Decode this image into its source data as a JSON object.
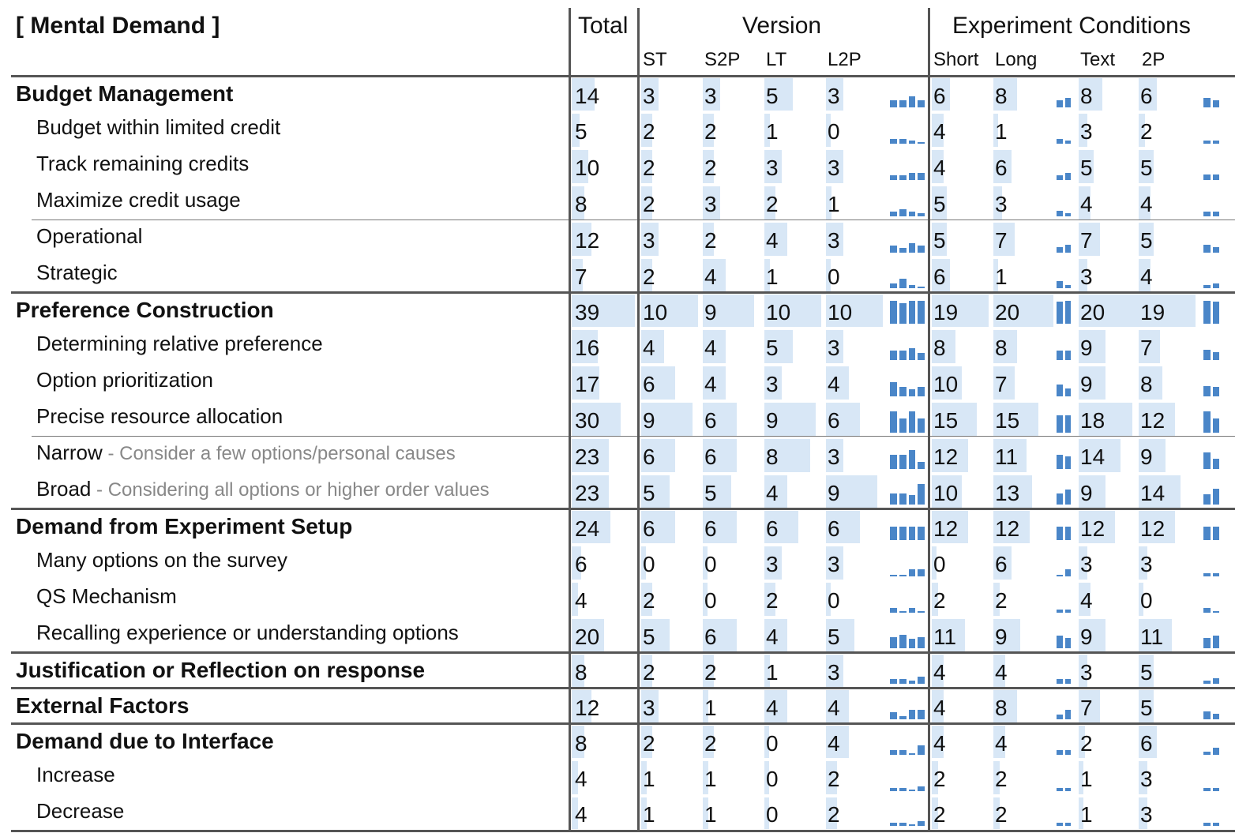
{
  "chart_data": {
    "type": "table",
    "title": "[ Mental Demand ]",
    "header": {
      "total_label": "Total",
      "version_label": "Version",
      "conditions_label": "Experiment Conditions",
      "version_cols": [
        "ST",
        "S2P",
        "LT",
        "L2P"
      ],
      "condition_cols": [
        "Short",
        "Long",
        "Text",
        "2P"
      ]
    },
    "rows": [
      {
        "label": "Budget Management",
        "level": "category",
        "total": 14,
        "version": [
          3,
          3,
          5,
          3
        ],
        "conditions": [
          6,
          8,
          8,
          6
        ]
      },
      {
        "label": "Budget within limited credit",
        "level": "sub",
        "total": 5,
        "version": [
          2,
          2,
          1,
          0
        ],
        "conditions": [
          4,
          1,
          3,
          2
        ]
      },
      {
        "label": "Track remaining credits",
        "level": "sub",
        "total": 10,
        "version": [
          2,
          2,
          3,
          3
        ],
        "conditions": [
          4,
          6,
          5,
          5
        ]
      },
      {
        "label": "Maximize credit usage",
        "level": "sub",
        "total": 8,
        "version": [
          2,
          3,
          2,
          1
        ],
        "conditions": [
          5,
          3,
          4,
          4
        ]
      },
      {
        "label": "Operational",
        "level": "sub",
        "total": 12,
        "version": [
          3,
          2,
          4,
          3
        ],
        "conditions": [
          5,
          7,
          7,
          5
        ]
      },
      {
        "label": "Strategic",
        "level": "sub",
        "total": 7,
        "version": [
          2,
          4,
          1,
          0
        ],
        "conditions": [
          6,
          1,
          3,
          4
        ]
      },
      {
        "label": "Preference Construction",
        "level": "category",
        "total": 39,
        "version": [
          10,
          9,
          10,
          10
        ],
        "conditions": [
          19,
          20,
          20,
          19
        ]
      },
      {
        "label": "Determining relative preference",
        "level": "sub",
        "total": 16,
        "version": [
          4,
          4,
          5,
          3
        ],
        "conditions": [
          8,
          8,
          9,
          7
        ]
      },
      {
        "label": "Option prioritization",
        "level": "sub",
        "total": 17,
        "version": [
          6,
          4,
          3,
          4
        ],
        "conditions": [
          10,
          7,
          9,
          8
        ]
      },
      {
        "label": "Precise resource allocation",
        "level": "sub",
        "total": 30,
        "version": [
          9,
          6,
          9,
          6
        ],
        "conditions": [
          15,
          15,
          18,
          12
        ]
      },
      {
        "label": "Narrow",
        "note": " - Consider a few options/personal causes",
        "level": "sub",
        "total": 23,
        "version": [
          6,
          6,
          8,
          3
        ],
        "conditions": [
          12,
          11,
          14,
          9
        ]
      },
      {
        "label": "Broad",
        "note": " - Considering all options or higher order values",
        "level": "sub",
        "total": 23,
        "version": [
          5,
          5,
          4,
          9
        ],
        "conditions": [
          10,
          13,
          9,
          14
        ]
      },
      {
        "label": "Demand from Experiment Setup",
        "level": "category",
        "total": 24,
        "version": [
          6,
          6,
          6,
          6
        ],
        "conditions": [
          12,
          12,
          12,
          12
        ]
      },
      {
        "label": "Many options on the survey",
        "level": "sub",
        "total": 6,
        "version": [
          0,
          0,
          3,
          3
        ],
        "conditions": [
          0,
          6,
          3,
          3
        ]
      },
      {
        "label": "QS Mechanism",
        "level": "sub",
        "total": 4,
        "version": [
          2,
          0,
          2,
          0
        ],
        "conditions": [
          2,
          2,
          4,
          0
        ]
      },
      {
        "label": "Recalling experience or understanding options",
        "level": "sub",
        "total": 20,
        "version": [
          5,
          6,
          4,
          5
        ],
        "conditions": [
          11,
          9,
          9,
          11
        ]
      },
      {
        "label": "Justification or Reflection on response",
        "level": "category",
        "total": 8,
        "version": [
          2,
          2,
          1,
          3
        ],
        "conditions": [
          4,
          4,
          3,
          5
        ]
      },
      {
        "label": "External Factors",
        "level": "category",
        "total": 12,
        "version": [
          3,
          1,
          4,
          4
        ],
        "conditions": [
          4,
          8,
          7,
          5
        ]
      },
      {
        "label": "Demand due to Interface",
        "level": "category",
        "total": 8,
        "version": [
          2,
          2,
          0,
          4
        ],
        "conditions": [
          4,
          4,
          2,
          6
        ]
      },
      {
        "label": "Increase",
        "level": "sub",
        "total": 4,
        "version": [
          1,
          1,
          0,
          2
        ],
        "conditions": [
          2,
          2,
          1,
          3
        ]
      },
      {
        "label": "Decrease",
        "level": "sub",
        "total": 4,
        "version": [
          1,
          1,
          0,
          2
        ],
        "conditions": [
          2,
          2,
          1,
          3
        ]
      }
    ],
    "colors": {
      "cell_bar": "#d8e7f6",
      "sparkline": "#4a86c8"
    }
  }
}
